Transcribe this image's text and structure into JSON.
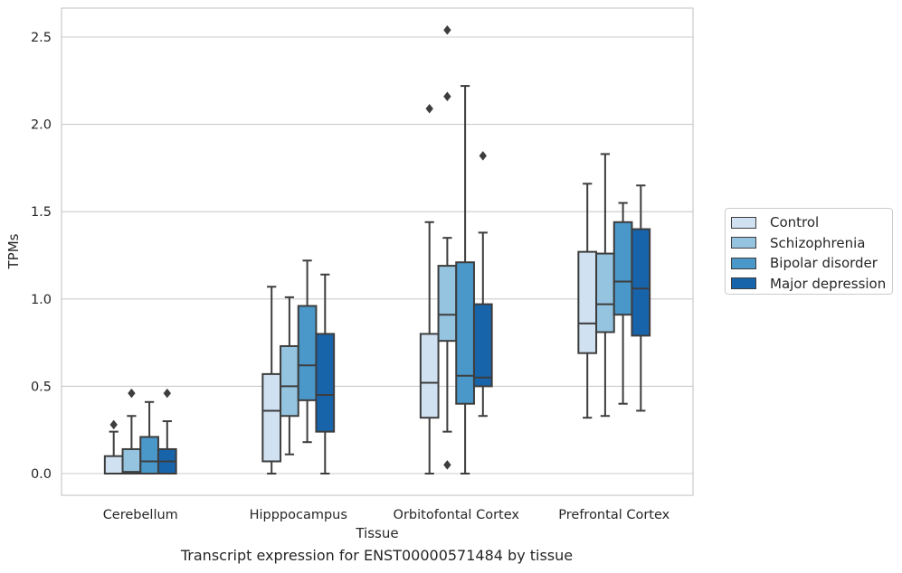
{
  "caption": "Transcript expression for ENST00000571484 by tissue",
  "chart_data": {
    "type": "boxplot",
    "xlabel": "Tissue",
    "ylabel": "TPMs",
    "ylim": [
      -0.12,
      2.68
    ],
    "yticks": [
      0.0,
      0.5,
      1.0,
      1.5,
      2.0,
      2.5
    ],
    "ytick_labels": [
      "0.0",
      "0.5",
      "1.0",
      "1.5",
      "2.0",
      "2.5"
    ],
    "grid": true,
    "legend_position": "right",
    "categories": [
      "Cerebellum",
      "Hipppocampus",
      "Orbitofontal Cortex",
      "Prefrontal Cortex"
    ],
    "series": [
      {
        "name": "Control",
        "color": "#d0e1f2",
        "boxes": [
          {
            "whisker_low": 0.0,
            "q1": 0.0,
            "median": 0.0,
            "q3": 0.1,
            "whisker_high": 0.24,
            "outliers": [
              0.28
            ]
          },
          {
            "whisker_low": 0.0,
            "q1": 0.07,
            "median": 0.36,
            "q3": 0.57,
            "whisker_high": 1.07,
            "outliers": []
          },
          {
            "whisker_low": 0.0,
            "q1": 0.32,
            "median": 0.52,
            "q3": 0.8,
            "whisker_high": 1.44,
            "outliers": [
              2.09
            ]
          },
          {
            "whisker_low": 0.32,
            "q1": 0.69,
            "median": 0.86,
            "q3": 1.27,
            "whisker_high": 1.66,
            "outliers": []
          }
        ]
      },
      {
        "name": "Schizophrenia",
        "color": "#94c4df",
        "boxes": [
          {
            "whisker_low": 0.0,
            "q1": 0.0,
            "median": 0.01,
            "q3": 0.14,
            "whisker_high": 0.33,
            "outliers": [
              0.46
            ]
          },
          {
            "whisker_low": 0.11,
            "q1": 0.33,
            "median": 0.5,
            "q3": 0.73,
            "whisker_high": 1.01,
            "outliers": []
          },
          {
            "whisker_low": 0.24,
            "q1": 0.76,
            "median": 0.91,
            "q3": 1.19,
            "whisker_high": 1.35,
            "outliers": [
              0.05,
              2.16,
              2.54
            ]
          },
          {
            "whisker_low": 0.33,
            "q1": 0.81,
            "median": 0.97,
            "q3": 1.26,
            "whisker_high": 1.83,
            "outliers": []
          }
        ]
      },
      {
        "name": "Bipolar disorder",
        "color": "#4a98c9",
        "boxes": [
          {
            "whisker_low": 0.0,
            "q1": 0.0,
            "median": 0.07,
            "q3": 0.21,
            "whisker_high": 0.41,
            "outliers": []
          },
          {
            "whisker_low": 0.18,
            "q1": 0.42,
            "median": 0.62,
            "q3": 0.96,
            "whisker_high": 1.22,
            "outliers": []
          },
          {
            "whisker_low": 0.0,
            "q1": 0.4,
            "median": 0.56,
            "q3": 1.21,
            "whisker_high": 2.22,
            "outliers": []
          },
          {
            "whisker_low": 0.4,
            "q1": 0.91,
            "median": 1.1,
            "q3": 1.44,
            "whisker_high": 1.55,
            "outliers": []
          }
        ]
      },
      {
        "name": "Major depression",
        "color": "#1764ab",
        "boxes": [
          {
            "whisker_low": 0.0,
            "q1": 0.0,
            "median": 0.07,
            "q3": 0.14,
            "whisker_high": 0.3,
            "outliers": [
              0.46
            ]
          },
          {
            "whisker_low": 0.0,
            "q1": 0.24,
            "median": 0.45,
            "q3": 0.8,
            "whisker_high": 1.14,
            "outliers": []
          },
          {
            "whisker_low": 0.33,
            "q1": 0.5,
            "median": 0.55,
            "q3": 0.97,
            "whisker_high": 1.38,
            "outliers": [
              1.82
            ]
          },
          {
            "whisker_low": 0.36,
            "q1": 0.79,
            "median": 1.06,
            "q3": 1.4,
            "whisker_high": 1.65,
            "outliers": []
          }
        ]
      }
    ]
  }
}
